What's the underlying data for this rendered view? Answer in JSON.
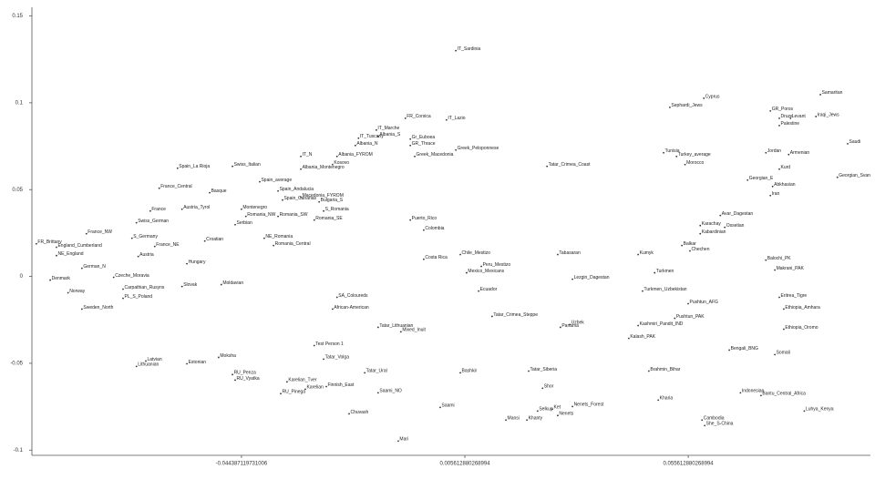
{
  "chart_data": {
    "type": "scatter",
    "color": "#333333",
    "xlim": [
      -0.0913,
      0.0964
    ],
    "ylim": [
      -0.103,
      0.155
    ],
    "xticks": [
      -0.044387119731006,
      0.005612880268994,
      0.055612880268994
    ],
    "yticks": [
      0.15,
      0.1,
      0.05,
      0,
      -0.05,
      -0.1
    ],
    "labels": [
      "IT_Sardinia",
      "Sephardi_Jews",
      "Cyprus",
      "Samaritan",
      "GR_Poros",
      "Druze",
      "Levant",
      "Palestine",
      "Iraqi_Jews",
      "Saudi",
      "Jordan",
      "Armenian",
      "Kurd",
      "Georgian_Svan",
      "Iran",
      "Georgian_E",
      "Abkhasian",
      "Turkey_average",
      "Tunisia",
      "Morocco",
      "Avar_Dagestan",
      "Karachay",
      "Ossetian",
      "Kabardinian",
      "Balkar",
      "Chechen",
      "Tabasaran",
      "Kumyk",
      "Turkmen",
      "Lezgin_Dagestan",
      "Turkmen_Uzbekistan",
      "Balochi_PK",
      "Makrani_PAK",
      "Eritrea_Tigre",
      "Ethiopia_Amhara",
      "Ethiopia_Oromo",
      "Somali",
      "Luhya_Kenya",
      "Bantu_Central_Africa",
      "Indonesian",
      "Cambodia",
      "She_S-China",
      "Pushtun_AFG",
      "Kashmiri_Pandit_IND",
      "Pushtun_PAK",
      "Uzbek",
      "Panama",
      "Shor",
      "Selkup",
      "Ket",
      "Nenets",
      "Nenets_Forest",
      "Khanty",
      "Mansi",
      "Saami",
      "Bashkir",
      "Mari",
      "Tatar_Siberia",
      "Tatar_Crimea_Steppe",
      "Peru_Mestizo",
      "Mexico_Mexicans",
      "Ecuador",
      "Colombia",
      "Costa Rica",
      "Chile_Mestizo",
      "Puerto_Rico",
      "Tatar_Crimea_Coast",
      "Greek_Peloponnese",
      "FR_Corsica",
      "IT_Lazio",
      "Gr_Euboea",
      "GR_Thrace",
      "Greek_Macedonia",
      "IT_Marche",
      "Albania_S",
      "IT_Tuscany",
      "Albania_N",
      "Albania_FYROM",
      "Kosovo",
      "IT_N",
      "Albania_Montenegro",
      "Spain_La Rioja",
      "Swiss_Italian",
      "France_Central",
      "Basque",
      "Spain_average",
      "Spain_Andalucia",
      "Spain_Canarias",
      "Macedonia_FYROM",
      "Bulgaria_S",
      "S_Romania",
      "Romania_SE",
      "Romania_NW",
      "Romania_SW",
      "NE_Romania",
      "Romania_Central",
      "Serbian",
      "Montenegro",
      "Austria_Tyrol",
      "Swiss_German",
      "France",
      "Croatian",
      "Hungary",
      "France_NE",
      "S_Germany",
      "Austria",
      "France_NW",
      "FR_Brittany",
      "England_Cumberland",
      "NE_England",
      "Denmark",
      "German_N",
      "Norway",
      "Czeche_Moravia",
      "Carpathian_Rusyns",
      "Slovak",
      "Moldavian",
      "PL_S_Poland",
      "Sweden_North",
      "Estonian",
      "Latvian",
      "Lithuanian",
      "Moksha",
      "RU_Penza",
      "RU_Vyatka",
      "RU_Pinega",
      "Karelian_Tver",
      "Karelian",
      "Tatar_Lithuanian",
      "Mixed_Inuit",
      "Test Person 1",
      "African-American",
      "SA_Coloureds",
      "Tatar_Volga",
      "Tatar_Ural",
      "Finnish_East",
      "Chuvash",
      "Saami_NO",
      "Kalash_PAK",
      "Brahmin_Bihar",
      "Bengali_BNG",
      "Kharia"
    ],
    "x": [
      0.0036,
      0.0515,
      0.0591,
      0.0852,
      0.074,
      0.076,
      0.0785,
      0.076,
      0.0842,
      0.0913,
      0.073,
      0.0781,
      0.076,
      0.089,
      0.074,
      0.0689,
      0.0745,
      0.053,
      0.0501,
      0.0549,
      0.0628,
      0.0583,
      0.0638,
      0.0583,
      0.0542,
      0.056,
      0.0264,
      0.0444,
      0.0481,
      0.0297,
      0.0454,
      0.073,
      0.075,
      0.076,
      0.077,
      0.077,
      0.075,
      0.0816,
      0.0719,
      0.0673,
      0.0587,
      0.0593,
      0.0556,
      0.0444,
      0.0526,
      0.0291,
      0.027,
      0.023,
      0.0219,
      0.0252,
      0.0264,
      0.0297,
      0.0195,
      0.0148,
      0.0001,
      0.0046,
      -0.0093,
      0.0199,
      0.0117,
      0.0093,
      0.006,
      0.0087,
      -0.0036,
      -0.0036,
      0.0046,
      -0.0066,
      0.024,
      0.0036,
      -0.0077,
      0.0015,
      -0.0066,
      -0.0066,
      -0.0056,
      -0.0142,
      -0.0138,
      -0.0182,
      -0.0189,
      -0.023,
      -0.024,
      -0.0311,
      -0.0311,
      -0.0587,
      -0.0464,
      -0.0628,
      -0.0515,
      -0.0403,
      -0.0362,
      -0.0352,
      -0.0311,
      -0.027,
      -0.026,
      -0.0281,
      -0.0434,
      -0.0362,
      -0.0393,
      -0.0372,
      -0.0458,
      -0.0444,
      -0.0577,
      -0.0679,
      -0.0648,
      -0.0526,
      -0.0566,
      -0.0638,
      -0.0689,
      -0.0675,
      -0.0791,
      -0.0903,
      -0.0858,
      -0.0858,
      -0.0872,
      -0.0801,
      -0.0832,
      -0.073,
      -0.0709,
      -0.0577,
      -0.0489,
      -0.0709,
      -0.0801,
      -0.0566,
      -0.0658,
      -0.0679,
      -0.0495,
      -0.0464,
      -0.0458,
      -0.0356,
      -0.0342,
      -0.0301,
      -0.0138,
      -0.0087,
      -0.0281,
      -0.024,
      -0.023,
      -0.026,
      -0.0168,
      -0.0254,
      -0.0203,
      -0.0138,
      0.0423,
      0.0468,
      0.0648,
      0.0489
    ],
    "values": [
      0.13,
      0.0974,
      0.1026,
      0.1047,
      0.0953,
      0.0911,
      0.0911,
      0.0869,
      0.0921,
      0.0764,
      0.0712,
      0.0702,
      0.0618,
      0.0571,
      0.0466,
      0.0555,
      0.0518,
      0.0691,
      0.0712,
      0.0644,
      0.0351,
      0.0293,
      0.0283,
      0.0246,
      0.0178,
      0.0147,
      0.0126,
      0.0126,
      0.0021,
      -0.0016,
      -0.0084,
      0.0094,
      0.0037,
      -0.012,
      -0.0188,
      -0.0304,
      -0.045,
      -0.0775,
      -0.0686,
      -0.067,
      -0.0827,
      -0.0859,
      -0.0157,
      -0.0283,
      -0.0241,
      -0.0277,
      -0.0293,
      -0.0644,
      -0.0775,
      -0.0764,
      -0.0801,
      -0.0749,
      -0.0827,
      -0.0827,
      -0.0754,
      -0.0555,
      -0.0948,
      -0.0545,
      -0.023,
      0.0058,
      0.0021,
      -0.0084,
      0.0267,
      0.0099,
      0.0126,
      0.0325,
      0.0634,
      0.0728,
      0.0911,
      0.0901,
      0.0791,
      0.0754,
      0.0691,
      0.0843,
      0.0806,
      0.0796,
      0.0754,
      0.0691,
      0.0644,
      0.0691,
      0.0618,
      0.0623,
      0.0634,
      0.0508,
      0.0482,
      0.0545,
      0.0492,
      0.044,
      0.0456,
      0.0429,
      0.0377,
      0.0325,
      0.0346,
      0.0346,
      0.022,
      0.0178,
      0.0298,
      0.0387,
      0.0387,
      0.0309,
      0.0377,
      0.0204,
      0.0073,
      0.0173,
      0.022,
      0.0115,
      0.0246,
      0.0188,
      0.0168,
      0.012,
      -0.0021,
      0.0047,
      -0.0094,
      -0.0005,
      -0.0073,
      -0.0058,
      -0.0047,
      -0.0126,
      -0.0188,
      -0.0503,
      -0.0487,
      -0.0518,
      -0.0466,
      -0.0565,
      -0.0597,
      -0.0675,
      -0.0607,
      -0.0649,
      -0.0293,
      -0.0319,
      -0.0398,
      -0.0188,
      -0.012,
      -0.0476,
      -0.0555,
      -0.0634,
      -0.0791,
      -0.067,
      -0.0356,
      -0.0545,
      -0.0424,
      -0.0712
    ]
  }
}
